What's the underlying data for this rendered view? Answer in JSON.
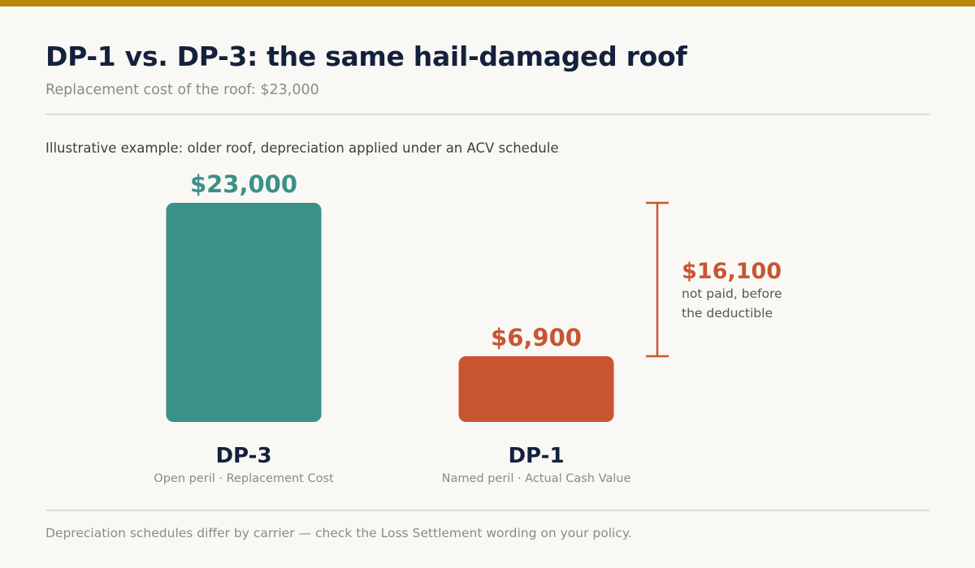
{
  "header": {
    "title": "DP-1 vs. DP-3: the same hail-damaged roof",
    "subtitle": "Replacement cost of the roof: $23,000"
  },
  "note": "Illustrative example: older roof, depreciation applied under an ACV schedule",
  "footer": "Depreciation schedules differ by carrier — check the Loss Settlement wording on your policy.",
  "colors": {
    "accent_bar": "#b8860b",
    "dp3": "#3a9188",
    "dp1": "#c85532",
    "title": "#14213d"
  },
  "chart_data": {
    "type": "bar",
    "ylim": [
      0,
      23000
    ],
    "grid": false,
    "categories": [
      "DP-3",
      "DP-1"
    ],
    "category_sublabels": [
      "Open peril · Replacement Cost",
      "Named peril · Actual Cash Value"
    ],
    "values": [
      23000,
      6900
    ],
    "value_labels": [
      "$23,000",
      "$6,900"
    ],
    "bar_colors": [
      "#3a9188",
      "#c85532"
    ],
    "annotation": {
      "value": 16100,
      "value_label": "$16,100",
      "text_lines": [
        "not paid, before",
        "the deductible"
      ],
      "range": [
        6900,
        23000
      ]
    }
  }
}
